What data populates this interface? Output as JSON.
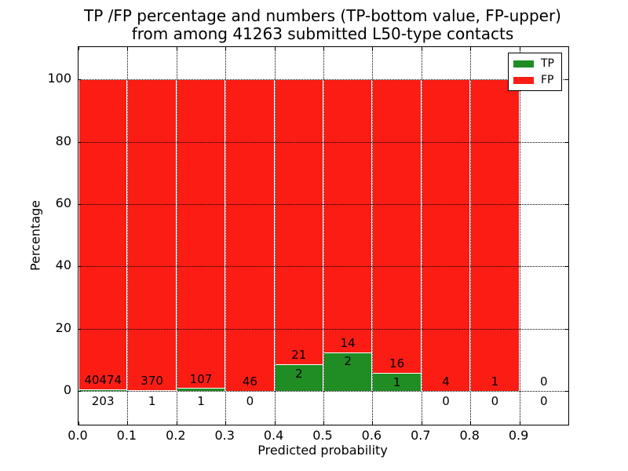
{
  "chart_data": {
    "type": "bar",
    "stacked": true,
    "title_line1": "TP /FP percentage and numbers (TP-bottom value, FP-upper)",
    "title_line2": "from among 41263 submitted L50-type contacts",
    "xlabel": "Predicted probability",
    "ylabel": "Percentage",
    "xlim": [
      0.0,
      1.0
    ],
    "ylim": [
      -10.8,
      110.4
    ],
    "bin_width": 0.1,
    "xticks": [
      "0.0",
      "0.1",
      "0.2",
      "0.3",
      "0.4",
      "0.5",
      "0.6",
      "0.7",
      "0.8",
      "0.9"
    ],
    "xtick_values": [
      0.0,
      0.1,
      0.2,
      0.3,
      0.4,
      0.5,
      0.6,
      0.7,
      0.8,
      0.9
    ],
    "yticks": [
      0,
      20,
      40,
      60,
      80,
      100
    ],
    "grid": "black dotted, both axes",
    "total_submitted": 41263,
    "legend": {
      "position": "upper right",
      "entries": [
        {
          "label": "TP",
          "color": "#208c24"
        },
        {
          "label": "FP",
          "color": "#fb1d14"
        }
      ]
    },
    "bins": [
      {
        "x_start": 0.0,
        "x_end": 0.1,
        "tp_count": 203,
        "fp_count": 40474,
        "tp_percent": 0.499,
        "fp_percent": 99.501
      },
      {
        "x_start": 0.1,
        "x_end": 0.2,
        "tp_count": 1,
        "fp_count": 370,
        "tp_percent": 0.27,
        "fp_percent": 99.73
      },
      {
        "x_start": 0.2,
        "x_end": 0.3,
        "tp_count": 1,
        "fp_count": 107,
        "tp_percent": 0.926,
        "fp_percent": 99.074
      },
      {
        "x_start": 0.3,
        "x_end": 0.4,
        "tp_count": 0,
        "fp_count": 46,
        "tp_percent": 0,
        "fp_percent": 100
      },
      {
        "x_start": 0.4,
        "x_end": 0.5,
        "tp_count": 2,
        "fp_count": 21,
        "tp_percent": 8.696,
        "fp_percent": 91.304
      },
      {
        "x_start": 0.5,
        "x_end": 0.6,
        "tp_count": 2,
        "fp_count": 14,
        "tp_percent": 12.5,
        "fp_percent": 87.5
      },
      {
        "x_start": 0.6,
        "x_end": 0.7,
        "tp_count": 1,
        "fp_count": 16,
        "tp_percent": 5.882,
        "fp_percent": 94.118
      },
      {
        "x_start": 0.7,
        "x_end": 0.8,
        "tp_count": 0,
        "fp_count": 4,
        "tp_percent": 0,
        "fp_percent": 100
      },
      {
        "x_start": 0.8,
        "x_end": 0.9,
        "tp_count": 0,
        "fp_count": 1,
        "tp_percent": 0,
        "fp_percent": 100
      },
      {
        "x_start": 0.9,
        "x_end": 1.0,
        "tp_count": 0,
        "fp_count": 0,
        "tp_percent": 0,
        "fp_percent": 0
      }
    ]
  }
}
